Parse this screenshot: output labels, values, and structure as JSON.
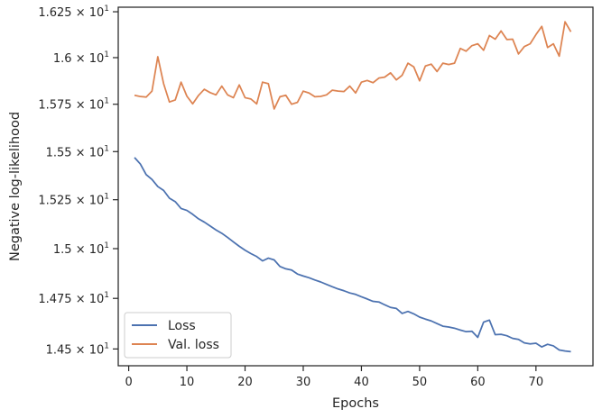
{
  "chart_data": {
    "type": "line",
    "xlabel": "Epochs",
    "ylabel": "Negative log-likelihood",
    "xlim": [
      -1.8,
      79.8
    ],
    "ylim": [
      14.418,
      16.275
    ],
    "y_scale": "log",
    "grid": false,
    "legend_position": "lower-left",
    "x_ticks": [
      0,
      10,
      20,
      30,
      40,
      50,
      60,
      70
    ],
    "y_ticks": [
      {
        "value": 14.5,
        "mantissa": "1.45"
      },
      {
        "value": 14.75,
        "mantissa": "1.475"
      },
      {
        "value": 15.0,
        "mantissa": "1.5"
      },
      {
        "value": 15.25,
        "mantissa": "1.525"
      },
      {
        "value": 15.5,
        "mantissa": "1.55"
      },
      {
        "value": 15.75,
        "mantissa": "1.575"
      },
      {
        "value": 16.0,
        "mantissa": "1.6"
      },
      {
        "value": 16.25,
        "mantissa": "1.625"
      }
    ],
    "y_tick_suffix": "× 10",
    "y_tick_exponent": "1",
    "x": [
      1,
      2,
      3,
      4,
      5,
      6,
      7,
      8,
      9,
      10,
      11,
      12,
      13,
      14,
      15,
      16,
      17,
      18,
      19,
      20,
      21,
      22,
      23,
      24,
      25,
      26,
      27,
      28,
      29,
      30,
      31,
      32,
      33,
      34,
      35,
      36,
      37,
      38,
      39,
      40,
      41,
      42,
      43,
      44,
      45,
      46,
      47,
      48,
      49,
      50,
      51,
      52,
      53,
      54,
      55,
      56,
      57,
      58,
      59,
      60,
      61,
      62,
      63,
      64,
      65,
      66,
      67,
      68,
      69,
      70,
      71,
      72,
      73,
      74,
      75,
      76
    ],
    "series": [
      {
        "name": "Loss",
        "color": "#4c72b0",
        "values": [
          15.469,
          15.435,
          15.38,
          15.355,
          15.318,
          15.298,
          15.258,
          15.24,
          15.205,
          15.195,
          15.175,
          15.152,
          15.135,
          15.115,
          15.095,
          15.078,
          15.057,
          15.034,
          15.012,
          14.992,
          14.975,
          14.96,
          14.938,
          14.952,
          14.943,
          14.91,
          14.898,
          14.892,
          14.872,
          14.862,
          14.853,
          14.842,
          14.832,
          14.82,
          14.808,
          14.797,
          14.788,
          14.777,
          14.77,
          14.758,
          14.747,
          14.735,
          14.732,
          14.718,
          14.705,
          14.7,
          14.675,
          14.685,
          14.673,
          14.657,
          14.647,
          14.638,
          14.625,
          14.612,
          14.608,
          14.602,
          14.593,
          14.585,
          14.587,
          14.557,
          14.632,
          14.642,
          14.57,
          14.572,
          14.565,
          14.552,
          14.547,
          14.53,
          14.525,
          14.528,
          14.51,
          14.523,
          14.515,
          14.495,
          14.49,
          14.487
        ]
      },
      {
        "name": "Val. loss",
        "color": "#dd8452",
        "values": [
          15.798,
          15.791,
          15.788,
          15.82,
          16.005,
          15.86,
          15.762,
          15.773,
          15.868,
          15.793,
          15.752,
          15.797,
          15.83,
          15.812,
          15.8,
          15.847,
          15.8,
          15.785,
          15.853,
          15.785,
          15.778,
          15.752,
          15.868,
          15.86,
          15.725,
          15.79,
          15.798,
          15.75,
          15.76,
          15.82,
          15.81,
          15.79,
          15.792,
          15.8,
          15.825,
          15.82,
          15.818,
          15.847,
          15.81,
          15.868,
          15.877,
          15.865,
          15.89,
          15.895,
          15.918,
          15.88,
          15.905,
          15.97,
          15.95,
          15.875,
          15.955,
          15.965,
          15.925,
          15.97,
          15.963,
          15.97,
          16.05,
          16.035,
          16.065,
          16.075,
          16.04,
          16.12,
          16.1,
          16.145,
          16.098,
          16.1,
          16.02,
          16.06,
          16.075,
          16.125,
          16.17,
          16.055,
          16.075,
          16.008,
          16.195,
          16.14
        ]
      }
    ]
  }
}
